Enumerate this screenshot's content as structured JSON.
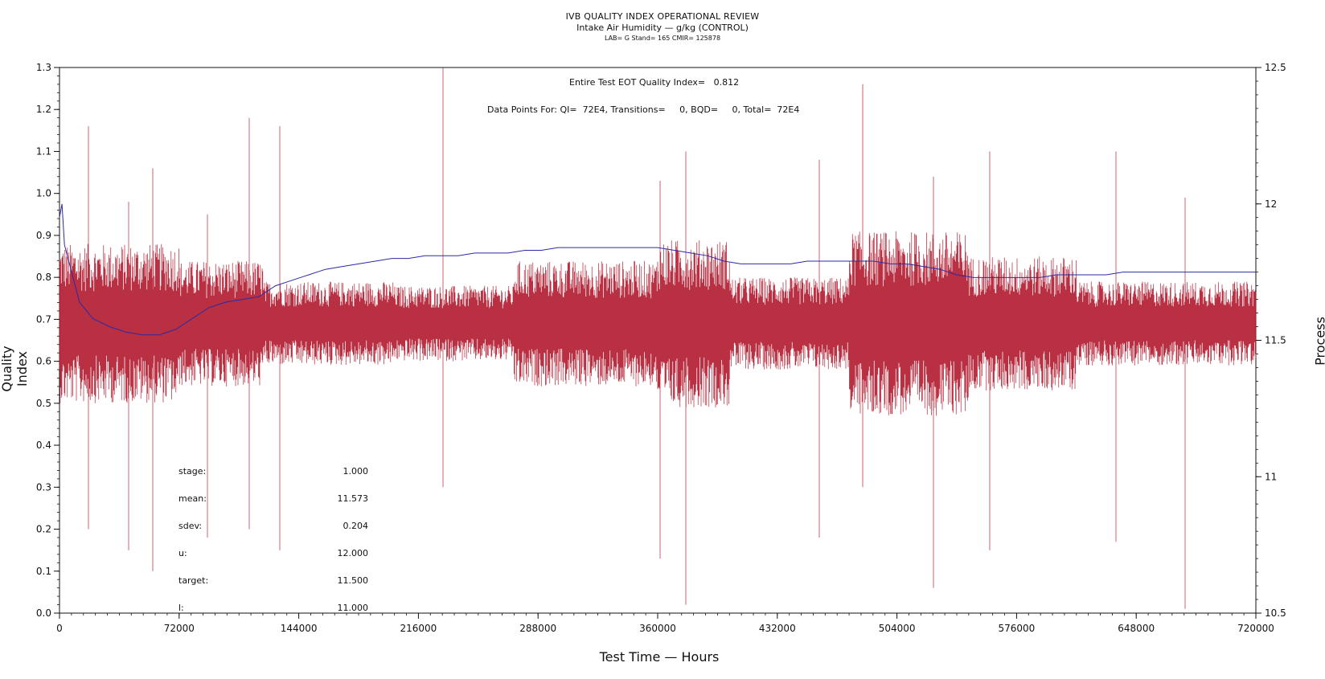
{
  "title": {
    "line1": "IVB QUALITY INDEX OPERATIONAL REVIEW",
    "line2": "Intake Air Humidity — g/kg (CONTROL)",
    "line3": "LAB= G Stand= 165 CMIR= 125878"
  },
  "annotations": {
    "eot": "Entire Test EOT Quality Index=   0.812",
    "datapoints": "Data Points For: QI=  72E4, Transitions=     0, BQD=     0, Total=  72E4"
  },
  "stats": [
    {
      "label": "stage:",
      "value": "1.000"
    },
    {
      "label": "mean:",
      "value": "11.573"
    },
    {
      "label": "sdev:",
      "value": "0.204"
    },
    {
      "label": "u:",
      "value": "12.000"
    },
    {
      "label": "target:",
      "value": "11.500"
    },
    {
      "label": "l:",
      "value": "11.000"
    }
  ],
  "chart_data": {
    "type": "line",
    "xlabel": "Test Time — Hours",
    "ylabel": "Quality Index",
    "y2label": "Process",
    "xlim": [
      0,
      720000
    ],
    "ylim": [
      0,
      1.3
    ],
    "y2lim": [
      10.5,
      12.5
    ],
    "x_ticks": [
      0,
      72000,
      144000,
      216000,
      288000,
      360000,
      432000,
      504000,
      576000,
      648000,
      720000
    ],
    "y_ticks": [
      "0.0",
      "0.1",
      "0.2",
      "0.3",
      "0.4",
      "0.5",
      "0.6",
      "0.7",
      "0.8",
      "0.9",
      "1.0",
      "1.1",
      "1.2",
      "1.3"
    ],
    "y2_ticks": [
      "10.5",
      "11",
      "11.5",
      "12",
      "12.5"
    ],
    "colors": {
      "quality_index": "#b01a2e",
      "process": "#2a2aa8",
      "axis": "#111111"
    },
    "series": [
      {
        "axis": "y2",
        "x": [
          0,
          1500,
          3000,
          6000,
          12000,
          20000,
          30000,
          40000,
          50000,
          60000,
          70000,
          80000,
          90000,
          100000,
          110000,
          120000,
          130000,
          140000,
          150000,
          160000,
          170000,
          180000,
          190000,
          200000,
          210000,
          220000,
          230000,
          240000,
          250000,
          260000,
          270000,
          280000,
          290000,
          300000,
          310000,
          320000,
          330000,
          340000,
          350000,
          360000,
          370000,
          380000,
          390000,
          400000,
          410000,
          420000,
          430000,
          440000,
          450000,
          460000,
          470000,
          480000,
          490000,
          500000,
          510000,
          520000,
          530000,
          540000,
          550000,
          560000,
          570000,
          580000,
          590000,
          600000,
          610000,
          620000,
          630000,
          640000,
          650000,
          660000,
          670000,
          680000,
          690000,
          700000,
          710000,
          720000
        ],
        "values": [
          11.95,
          12.0,
          11.85,
          11.78,
          11.64,
          11.58,
          11.55,
          11.53,
          11.52,
          11.52,
          11.54,
          11.58,
          11.62,
          11.64,
          11.65,
          11.66,
          11.7,
          11.72,
          11.74,
          11.76,
          11.77,
          11.78,
          11.79,
          11.8,
          11.8,
          11.81,
          11.81,
          11.81,
          11.82,
          11.82,
          11.82,
          11.83,
          11.83,
          11.84,
          11.84,
          11.84,
          11.84,
          11.84,
          11.84,
          11.84,
          11.83,
          11.82,
          11.81,
          11.79,
          11.78,
          11.78,
          11.78,
          11.78,
          11.79,
          11.79,
          11.79,
          11.79,
          11.79,
          11.78,
          11.78,
          11.77,
          11.76,
          11.74,
          11.73,
          11.73,
          11.73,
          11.73,
          11.73,
          11.74,
          11.74,
          11.74,
          11.74,
          11.75,
          11.75,
          11.75,
          11.75,
          11.75,
          11.75,
          11.75,
          11.75,
          11.75
        ]
      }
    ]
  }
}
